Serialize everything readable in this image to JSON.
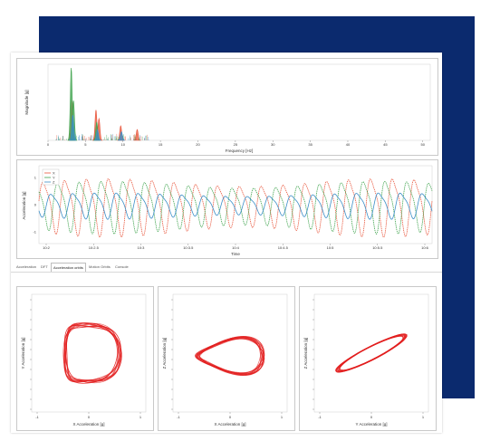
{
  "colors": {
    "backdrop": "#0b2a6e",
    "series_x": "#e8553b",
    "series_y": "#3fa34d",
    "series_z": "#3d8fc8",
    "loop": "#e31e1e"
  },
  "tabs": [
    {
      "label": "Acceleration",
      "active": false
    },
    {
      "label": "DFT",
      "active": false
    },
    {
      "label": "Acceleration orbits",
      "active": true
    },
    {
      "label": "Motion Orbits",
      "active": false
    },
    {
      "label": "Console",
      "active": false
    }
  ],
  "chart_data": [
    {
      "type": "bar",
      "xlabel": "Frequency [Hz]",
      "ylabel": "Magnitude [g]",
      "x_ticks": [
        "0",
        "5",
        "10",
        "15",
        "20",
        "25",
        "30",
        "35",
        "40",
        "45",
        "50"
      ],
      "series": [
        {
          "color": "#e8553b",
          "peaks": [
            [
              3.2,
              0.55
            ],
            [
              6.4,
              0.42
            ],
            [
              6.8,
              0.3
            ],
            [
              9.7,
              0.2
            ],
            [
              11.9,
              0.15
            ]
          ]
        },
        {
          "color": "#3fa34d",
          "peaks": [
            [
              3.1,
              1.0
            ],
            [
              3.4,
              0.55
            ],
            [
              6.5,
              0.25
            ]
          ]
        },
        {
          "color": "#3d8fc8",
          "peaks": [
            [
              3.3,
              0.35
            ],
            [
              6.6,
              0.15
            ],
            [
              9.8,
              0.12
            ]
          ]
        }
      ],
      "xlim": [
        0,
        51
      ],
      "ylim": [
        0,
        1
      ]
    },
    {
      "type": "line",
      "xlabel": "Time",
      "ylabel": "Acceleration [g]",
      "x_ticks": [
        "10:2",
        "10:2.5",
        "10:3",
        "10:3.5",
        "10:4",
        "10:4.5",
        "10:5",
        "10:5.5",
        "10:6"
      ],
      "y_ticks": [
        "1",
        "0",
        "-1"
      ],
      "legend": [
        "X",
        "Y",
        "Z"
      ],
      "legend_position": "top-left",
      "cycles": 18
    },
    {
      "type": "scatter",
      "xlabel": "X Acceleration [g]",
      "ylabel": "Y Acceleration [g]",
      "x_ticks": [
        "-1",
        "0",
        "1"
      ],
      "shape": "loop"
    },
    {
      "type": "scatter",
      "xlabel": "X Acceleration [g]",
      "ylabel": "Z Acceleration [g]",
      "x_ticks": [
        "-1",
        "0",
        "1"
      ],
      "shape": "flat-loop"
    },
    {
      "type": "scatter",
      "xlabel": "Y Acceleration [g]",
      "ylabel": "Z Acceleration [g]",
      "x_ticks": [
        "-1",
        "0",
        "1"
      ],
      "shape": "diagonal"
    }
  ]
}
